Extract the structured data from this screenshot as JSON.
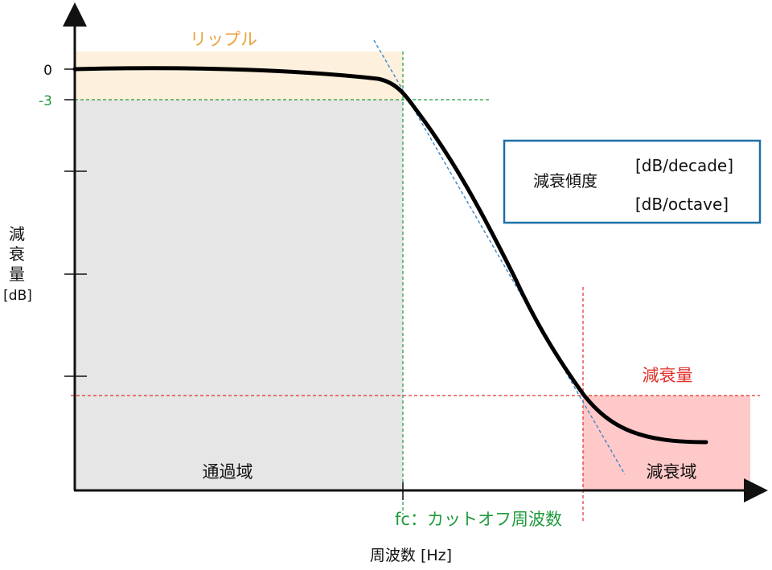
{
  "colors": {
    "ripple": "#e8a13a",
    "ripple_fill": "#fdf0dd",
    "passband_fill": "#e6e6e6",
    "stopband_fill": "#ffc9c9",
    "cutoff": "#1f9a3c",
    "attenuation": "#e0302a",
    "slope_line": "#3a86c8",
    "box_border": "#1f6fa8",
    "curve": "#000000",
    "axis": "#111111"
  },
  "labels": {
    "ripple": "リップル",
    "y_zero": "0",
    "y_minus3": "-3",
    "y_axis_line1": "減",
    "y_axis_line2": "衰",
    "y_axis_line3": "量",
    "y_axis_unit": "[dB]",
    "passband": "通過域",
    "stopband": "減衰域",
    "attenuation": "減衰量",
    "cutoff": "fc：カットオフ周波数",
    "x_axis": "周波数 [Hz]"
  },
  "info_box": {
    "title": "減衰傾度",
    "unit1": "[dB/decade]",
    "unit2": "[dB/octave]"
  },
  "icons": {
    "curve": "response-curve",
    "slope": "slope-dashed-line"
  }
}
